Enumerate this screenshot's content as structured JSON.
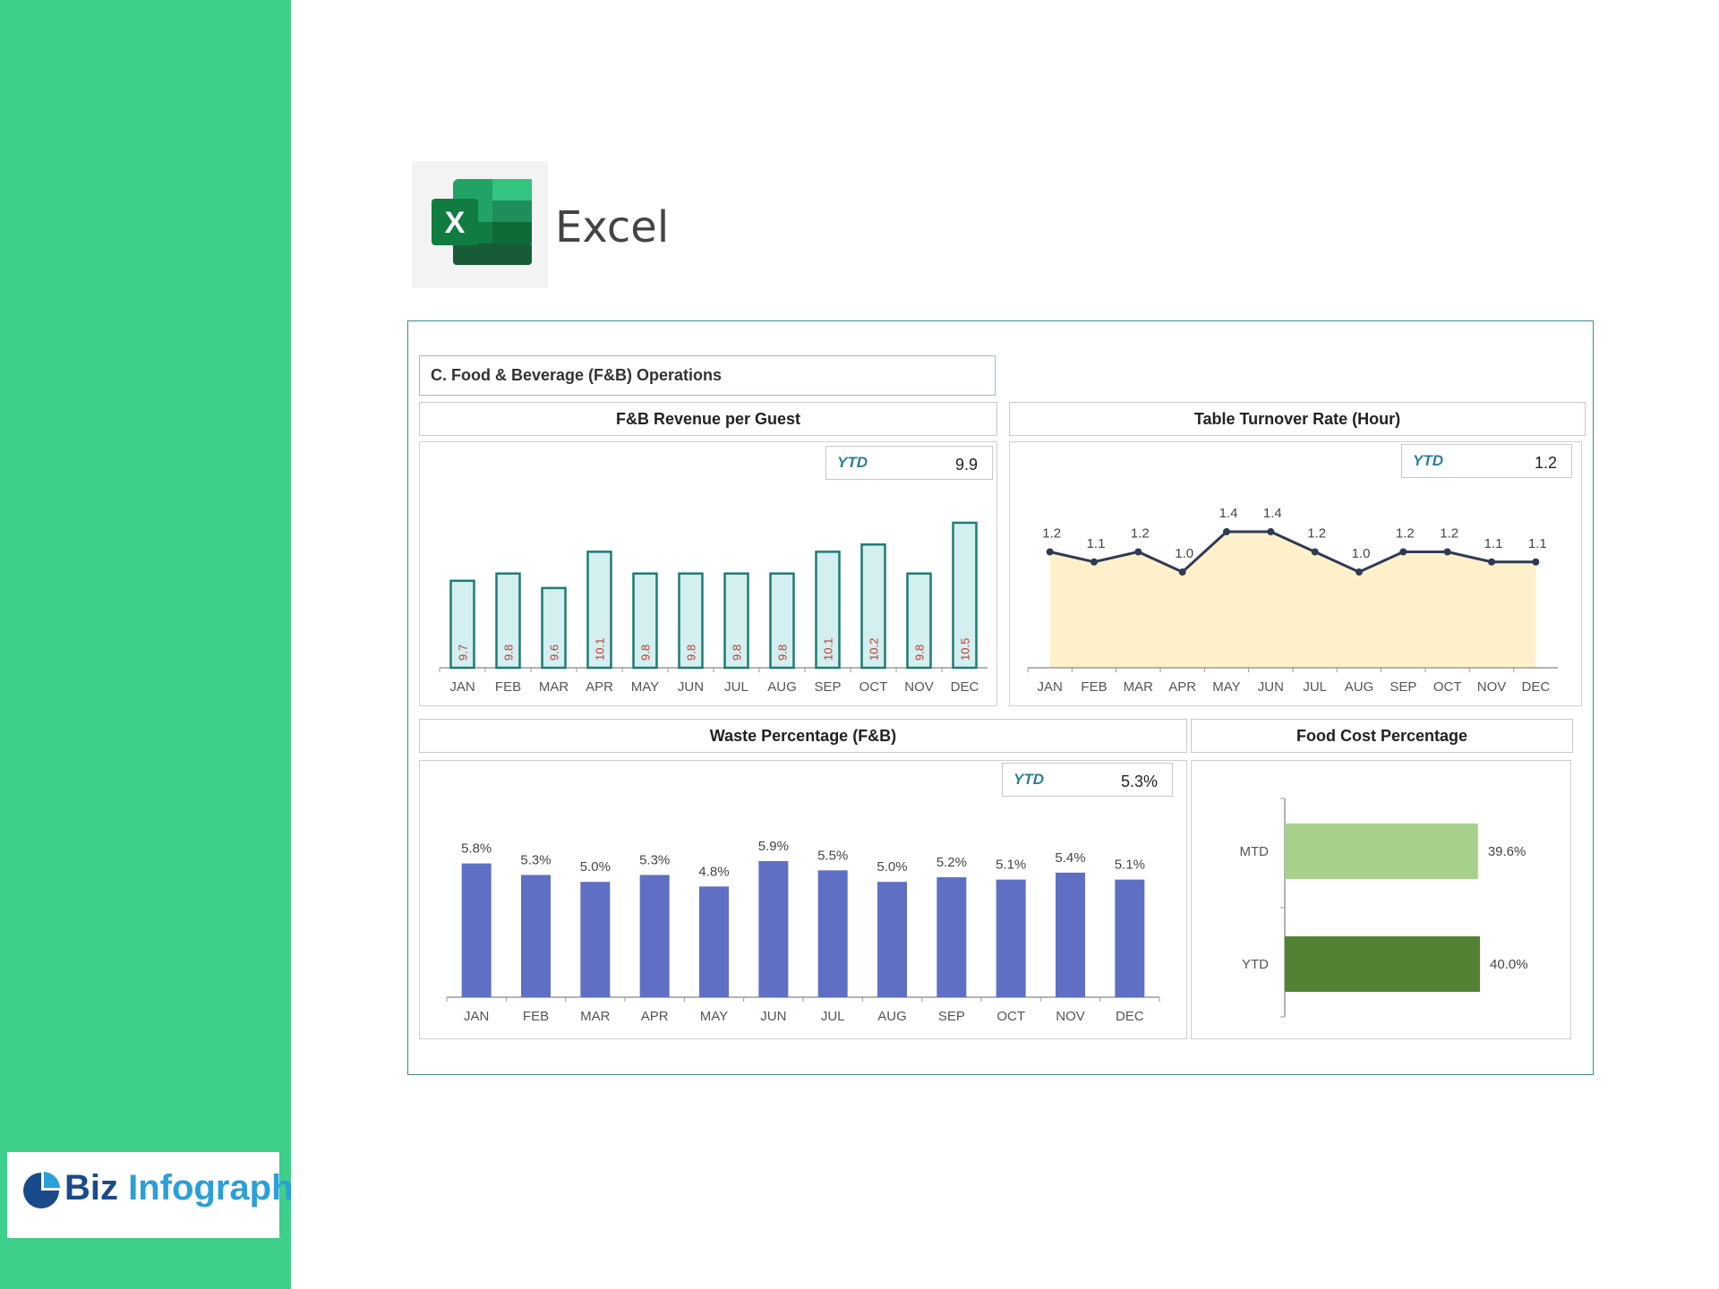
{
  "colors": {
    "sidebar": "#3ecf8a",
    "logo_blue": "#1a4a8a",
    "logo_cyan": "#2a9fd8",
    "bar_teal_fill": "#d3eff0",
    "bar_teal_stroke": "#1f7b72",
    "bar_value_red": "#c0392b",
    "area_fill": "#fff0cc",
    "line_dark": "#2f3b52",
    "bar_blue": "#5f6fc4",
    "mtd_green": "#a8d08d",
    "ytd_green": "#548235"
  },
  "brand": {
    "name_a": "Biz",
    "name_b": "Infograph"
  },
  "app": {
    "name": "Excel",
    "icon": "excel-icon"
  },
  "dashboard": {
    "section_title": "C. Food & Beverage (F&B) Operations",
    "revenue": {
      "title": "F&B Revenue per Guest",
      "ytd_label": "YTD",
      "ytd_value": "9.9"
    },
    "turnover": {
      "title": "Table Turnover Rate (Hour)",
      "ytd_label": "YTD",
      "ytd_value": "1.2"
    },
    "waste": {
      "title": "Waste Percentage (F&B)",
      "ytd_label": "YTD",
      "ytd_value": "5.3%"
    },
    "foodcost": {
      "title": "Food Cost Percentage"
    }
  },
  "chart_data": [
    {
      "type": "bar",
      "title": "F&B Revenue per Guest",
      "categories": [
        "JAN",
        "FEB",
        "MAR",
        "APR",
        "MAY",
        "JUN",
        "JUL",
        "AUG",
        "SEP",
        "OCT",
        "NOV",
        "DEC"
      ],
      "values": [
        9.7,
        9.8,
        9.6,
        10.1,
        9.8,
        9.8,
        9.8,
        9.8,
        10.1,
        10.2,
        9.8,
        10.5
      ],
      "labels": [
        "9.7",
        "9.8",
        "9.6",
        "10.1",
        "9.8",
        "9.8",
        "9.8",
        "9.8",
        "10.1",
        "10.2",
        "9.8",
        "10.5"
      ]
    },
    {
      "type": "area",
      "title": "Table Turnover Rate (Hour)",
      "categories": [
        "JAN",
        "FEB",
        "MAR",
        "APR",
        "MAY",
        "JUN",
        "JUL",
        "AUG",
        "SEP",
        "OCT",
        "NOV",
        "DEC"
      ],
      "values": [
        1.2,
        1.1,
        1.2,
        1.0,
        1.4,
        1.4,
        1.2,
        1.0,
        1.2,
        1.2,
        1.1,
        1.1
      ],
      "labels": [
        "1.2",
        "1.1",
        "1.2",
        "1.0",
        "1.4",
        "1.4",
        "1.2",
        "1.0",
        "1.2",
        "1.2",
        "1.1",
        "1.1"
      ]
    },
    {
      "type": "bar",
      "title": "Waste Percentage (F&B)",
      "categories": [
        "JAN",
        "FEB",
        "MAR",
        "APR",
        "MAY",
        "JUN",
        "JUL",
        "AUG",
        "SEP",
        "OCT",
        "NOV",
        "DEC"
      ],
      "values": [
        5.8,
        5.3,
        5.0,
        5.3,
        4.8,
        5.9,
        5.5,
        5.0,
        5.2,
        5.1,
        5.4,
        5.1
      ],
      "labels": [
        "5.8%",
        "5.3%",
        "5.0%",
        "5.3%",
        "4.8%",
        "5.9%",
        "5.5%",
        "5.0%",
        "5.2%",
        "5.1%",
        "5.4%",
        "5.1%"
      ]
    },
    {
      "type": "bar",
      "orientation": "horizontal",
      "title": "Food Cost Percentage",
      "categories": [
        "MTD",
        "YTD"
      ],
      "values": [
        39.6,
        40.0
      ],
      "labels": [
        "39.6%",
        "40.0%"
      ]
    }
  ]
}
